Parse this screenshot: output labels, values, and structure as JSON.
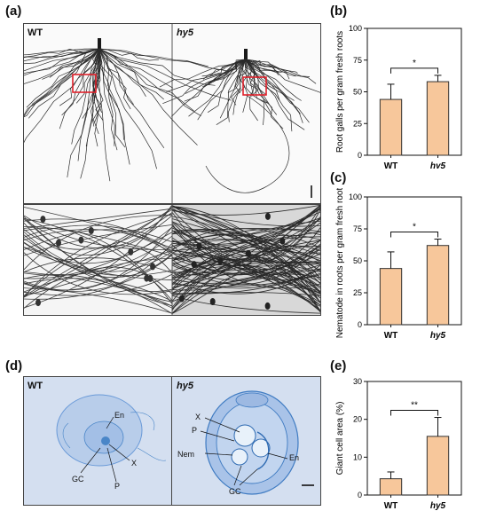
{
  "figure": {
    "panel_labels": {
      "a": "(a)",
      "b": "(b)",
      "c": "(c)",
      "d": "(d)",
      "e": "(e)"
    },
    "panel_a": {
      "left_label": "WT",
      "right_label": "hy5"
    },
    "panel_d": {
      "left_label": "WT",
      "right_label": "hy5",
      "left_annotations": {
        "en": "En",
        "x": "X",
        "gc": "GC",
        "p": "P"
      },
      "right_annotations": {
        "x": "X",
        "p": "P",
        "nem": "Nem",
        "en": "En",
        "gc": "GC"
      }
    },
    "colors": {
      "bar_fill": "#f7c79b",
      "bar_stroke": "#333333",
      "root_ink": "#2b2b2b",
      "section_blue": "#4a86c8",
      "highlight_box": "#e0202a"
    }
  },
  "chart_data": [
    {
      "panel": "(b)",
      "type": "bar",
      "categories": [
        "WT",
        "hy5"
      ],
      "values": [
        44,
        58
      ],
      "errors": [
        12,
        5
      ],
      "ylabel": "Root galls per gram fresh roots",
      "ylim": [
        0,
        100
      ],
      "yticks": [
        0,
        25,
        50,
        75,
        100
      ],
      "significance": "*"
    },
    {
      "panel": "(c)",
      "type": "bar",
      "categories": [
        "WT",
        "hy5"
      ],
      "values": [
        44,
        62
      ],
      "errors": [
        13,
        5
      ],
      "ylabel": "Nematode in roots per gram fresh roots",
      "ylim": [
        0,
        100
      ],
      "yticks": [
        0,
        25,
        50,
        75,
        100
      ],
      "significance": "*"
    },
    {
      "panel": "(e)",
      "type": "bar",
      "categories": [
        "WT",
        "hy5"
      ],
      "values": [
        4.3,
        15.5
      ],
      "errors": [
        1.8,
        5.0
      ],
      "ylabel": "Giant cell area (%)",
      "ylim": [
        0,
        30
      ],
      "yticks": [
        0,
        10,
        20,
        30
      ],
      "significance": "**"
    }
  ]
}
